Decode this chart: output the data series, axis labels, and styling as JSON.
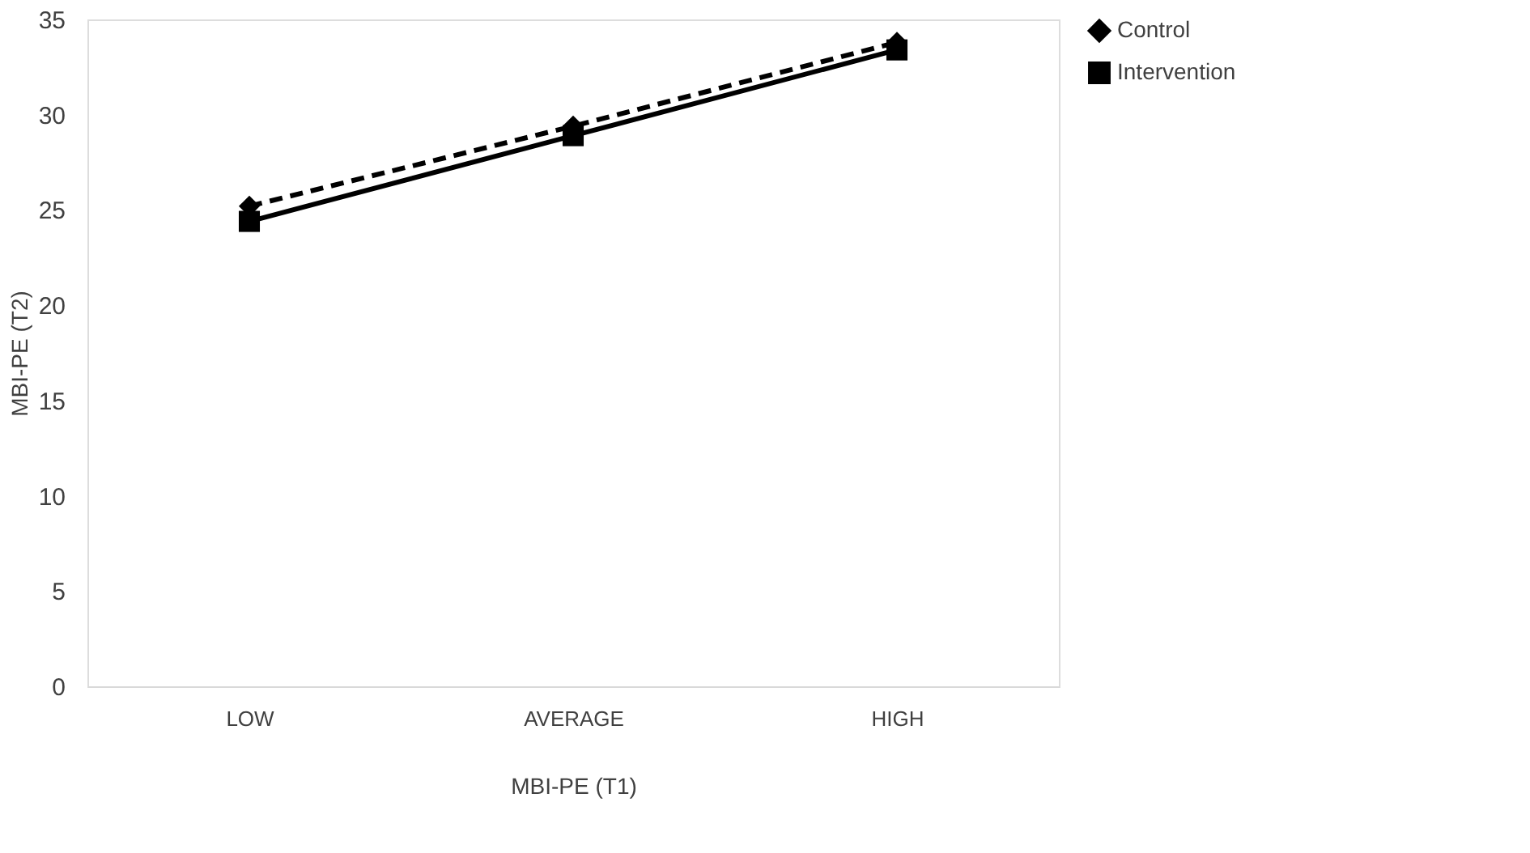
{
  "chart_data": {
    "type": "line",
    "xlabel": "MBI-PE (T1)",
    "ylabel": "MBI-PE (T2)",
    "categories": [
      "LOW",
      "AVERAGE",
      "HIGH"
    ],
    "series": [
      {
        "name": "Control",
        "color": "#000000",
        "values": [
          25.2,
          29.4,
          33.8
        ],
        "line_style": "dashed",
        "marker": "diamond"
      },
      {
        "name": "Intervention",
        "color": "#000000",
        "values": [
          24.4,
          28.9,
          33.4
        ],
        "line_style": "solid",
        "marker": "square"
      }
    ],
    "ylim": [
      0,
      35
    ],
    "yticks": [
      0,
      5,
      10,
      15,
      20,
      25,
      30,
      35
    ],
    "grid": false,
    "legend": "right"
  }
}
